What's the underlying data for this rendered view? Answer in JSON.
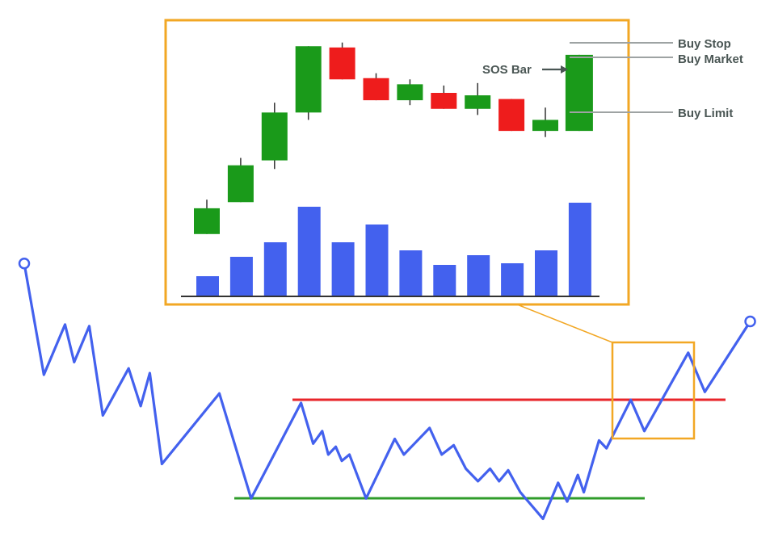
{
  "labels": {
    "sos_bar": "SOS Bar",
    "buy_stop": "Buy Stop",
    "buy_market": "Buy Market",
    "buy_limit": "Buy Limit"
  },
  "colors": {
    "price_line": "#4361ee",
    "resistance": "#e8262b",
    "support": "#2f9c2a",
    "highlight_box": "#f2a724",
    "bull_candle": "#1a9a1a",
    "bear_candle": "#ee1c1c",
    "volume_bar": "#4361ee",
    "guide_line": "#9ea3a3",
    "label_text": "#4a5654"
  },
  "icons": {
    "start": "hollow-circle-icon",
    "end": "hollow-circle-icon",
    "sos_pointer": "arrow-right-icon"
  },
  "chart_data": {
    "type": "candlestick",
    "candles": [
      {
        "open": 1.0,
        "close": 3.1,
        "high": 3.8,
        "low": 1.0
      },
      {
        "open": 3.6,
        "close": 6.6,
        "high": 7.2,
        "low": 3.6
      },
      {
        "open": 7.0,
        "close": 10.9,
        "high": 11.7,
        "low": 6.3
      },
      {
        "open": 10.9,
        "close": 16.3,
        "high": 16.3,
        "low": 10.3
      },
      {
        "open": 16.2,
        "close": 13.6,
        "high": 16.6,
        "low": 13.6
      },
      {
        "open": 13.7,
        "close": 11.9,
        "high": 14.1,
        "low": 11.9
      },
      {
        "open": 11.9,
        "close": 13.2,
        "high": 13.6,
        "low": 11.5
      },
      {
        "open": 12.5,
        "close": 11.2,
        "high": 13.1,
        "low": 11.2
      },
      {
        "open": 11.2,
        "close": 12.3,
        "high": 13.3,
        "low": 10.7
      },
      {
        "open": 12.0,
        "close": 9.4,
        "high": 12.0,
        "low": 9.4
      },
      {
        "open": 9.4,
        "close": 10.3,
        "high": 11.3,
        "low": 8.9
      },
      {
        "open": 9.4,
        "close": 15.6,
        "high": 15.6,
        "low": 9.4
      }
    ],
    "volume": [
      2.4,
      4.8,
      6.6,
      11.0,
      6.6,
      8.8,
      5.6,
      3.8,
      5.0,
      4.0,
      5.6,
      11.5
    ],
    "price_path": [
      [
        0,
        8.7
      ],
      [
        1.3,
        1.6
      ],
      [
        2.7,
        4.8
      ],
      [
        3.3,
        2.4
      ],
      [
        4.3,
        4.7
      ],
      [
        5.2,
        -1.0
      ],
      [
        6.9,
        2.0
      ],
      [
        7.7,
        -0.4
      ],
      [
        8.3,
        1.7
      ],
      [
        9.1,
        -4.1
      ],
      [
        12.9,
        0.4
      ],
      [
        15.0,
        -6.3
      ],
      [
        18.3,
        -0.2
      ],
      [
        19.1,
        -2.8
      ],
      [
        19.7,
        -2.0
      ],
      [
        20.1,
        -3.5
      ],
      [
        20.6,
        -3.0
      ],
      [
        21.0,
        -3.9
      ],
      [
        21.5,
        -3.5
      ],
      [
        22.6,
        -6.3
      ],
      [
        24.5,
        -2.5
      ],
      [
        25.1,
        -3.5
      ],
      [
        26.8,
        -1.8
      ],
      [
        27.6,
        -3.5
      ],
      [
        28.4,
        -2.9
      ],
      [
        29.2,
        -4.4
      ],
      [
        30.0,
        -5.2
      ],
      [
        30.8,
        -4.4
      ],
      [
        31.4,
        -5.2
      ],
      [
        32.0,
        -4.5
      ],
      [
        32.8,
        -5.9
      ],
      [
        34.3,
        -7.6
      ],
      [
        35.3,
        -5.3
      ],
      [
        35.9,
        -6.5
      ],
      [
        36.6,
        -4.8
      ],
      [
        37.0,
        -5.9
      ],
      [
        38.0,
        -2.6
      ],
      [
        38.5,
        -3.1
      ],
      [
        40.1,
        0.0
      ],
      [
        41.0,
        -2.0
      ],
      [
        43.9,
        3.0
      ],
      [
        45.0,
        0.5
      ],
      [
        48.0,
        5.0
      ]
    ],
    "resistance_level": 0.0,
    "support_level": -6.3
  }
}
